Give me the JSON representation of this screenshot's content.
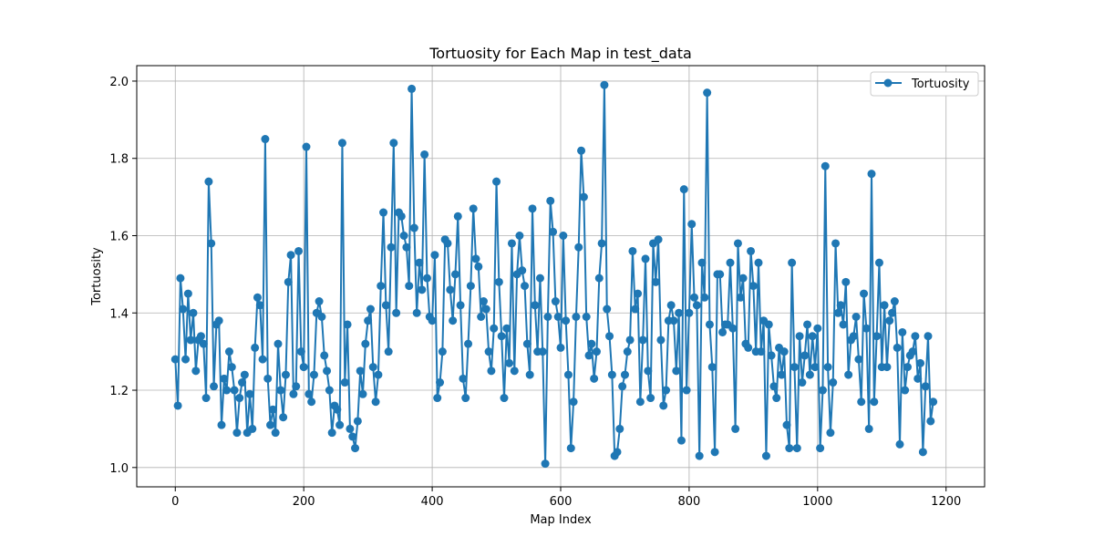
{
  "chart_data": {
    "type": "line",
    "title": "Tortuosity for Each Map in test_data",
    "xlabel": "Map Index",
    "ylabel": "Tortuosity",
    "xlim": [
      -60,
      1260
    ],
    "ylim": [
      0.95,
      2.04
    ],
    "xticks": [
      0,
      200,
      400,
      600,
      800,
      1000,
      1200
    ],
    "yticks": [
      1.0,
      1.2,
      1.4,
      1.6,
      1.8,
      2.0
    ],
    "xtick_labels": [
      "0",
      "200",
      "400",
      "600",
      "800",
      "1000",
      "1200"
    ],
    "ytick_labels": [
      "1.0",
      "1.2",
      "1.4",
      "1.6",
      "1.8",
      "2.0"
    ],
    "grid": true,
    "legend_position": "top-right",
    "series": [
      {
        "name": "Tortuosity",
        "color": "#1f77b4",
        "marker": "circle",
        "x_start": 0,
        "x_step": 4,
        "y": [
          1.28,
          1.16,
          1.49,
          1.41,
          1.28,
          1.45,
          1.33,
          1.4,
          1.25,
          1.33,
          1.34,
          1.32,
          1.18,
          1.74,
          1.58,
          1.21,
          1.37,
          1.38,
          1.11,
          1.23,
          1.2,
          1.3,
          1.26,
          1.2,
          1.09,
          1.18,
          1.22,
          1.24,
          1.09,
          1.19,
          1.1,
          1.31,
          1.44,
          1.42,
          1.28,
          1.85,
          1.23,
          1.11,
          1.15,
          1.09,
          1.32,
          1.2,
          1.13,
          1.24,
          1.48,
          1.55,
          1.19,
          1.21,
          1.56,
          1.3,
          1.26,
          1.83,
          1.19,
          1.17,
          1.24,
          1.4,
          1.43,
          1.39,
          1.29,
          1.25,
          1.2,
          1.09,
          1.16,
          1.15,
          1.11,
          1.84,
          1.22,
          1.37,
          1.1,
          1.08,
          1.05,
          1.12,
          1.25,
          1.19,
          1.32,
          1.38,
          1.41,
          1.26,
          1.17,
          1.24,
          1.47,
          1.66,
          1.42,
          1.3,
          1.57,
          1.84,
          1.4,
          1.66,
          1.65,
          1.6,
          1.57,
          1.47,
          1.98,
          1.62,
          1.4,
          1.53,
          1.46,
          1.81,
          1.49,
          1.39,
          1.38,
          1.55,
          1.18,
          1.22,
          1.3,
          1.59,
          1.58,
          1.46,
          1.38,
          1.5,
          1.65,
          1.42,
          1.23,
          1.18,
          1.32,
          1.47,
          1.67,
          1.54,
          1.52,
          1.39,
          1.43,
          1.41,
          1.3,
          1.25,
          1.36,
          1.74,
          1.48,
          1.34,
          1.18,
          1.36,
          1.27,
          1.58,
          1.25,
          1.5,
          1.6,
          1.51,
          1.47,
          1.32,
          1.24,
          1.67,
          1.42,
          1.3,
          1.49,
          1.3,
          1.01,
          1.39,
          1.69,
          1.61,
          1.43,
          1.39,
          1.31,
          1.6,
          1.38,
          1.24,
          1.05,
          1.17,
          1.39,
          1.57,
          1.82,
          1.7,
          1.39,
          1.29,
          1.32,
          1.23,
          1.3,
          1.49,
          1.58,
          1.99,
          1.41,
          1.34,
          1.24,
          1.03,
          1.04,
          1.1,
          1.21,
          1.24,
          1.3,
          1.33,
          1.56,
          1.41,
          1.45,
          1.17,
          1.33,
          1.54,
          1.25,
          1.18,
          1.58,
          1.48,
          1.59,
          1.33,
          1.16,
          1.2,
          1.38,
          1.42,
          1.38,
          1.25,
          1.4,
          1.07,
          1.72,
          1.2,
          1.4,
          1.63,
          1.44,
          1.42,
          1.03,
          1.53,
          1.44,
          1.97,
          1.37,
          1.26,
          1.04,
          1.5,
          1.5,
          1.35,
          1.37,
          1.37,
          1.53,
          1.36,
          1.1,
          1.58,
          1.44,
          1.49,
          1.32,
          1.31,
          1.56,
          1.47,
          1.3,
          1.53,
          1.3,
          1.38,
          1.03,
          1.37,
          1.29,
          1.21,
          1.18,
          1.31,
          1.24,
          1.3,
          1.11,
          1.05,
          1.53,
          1.26,
          1.05,
          1.34,
          1.22,
          1.29,
          1.37,
          1.24,
          1.34,
          1.26,
          1.36,
          1.05,
          1.2,
          1.78,
          1.26,
          1.09,
          1.22,
          1.58,
          1.4,
          1.42,
          1.37,
          1.48,
          1.24,
          1.33,
          1.34,
          1.39,
          1.28,
          1.17,
          1.45,
          1.36,
          1.1,
          1.76,
          1.17,
          1.34,
          1.53,
          1.26,
          1.42,
          1.26,
          1.38,
          1.4,
          1.43,
          1.31,
          1.06,
          1.35,
          1.2,
          1.26,
          1.29,
          1.3,
          1.34,
          1.23,
          1.27,
          1.04,
          1.21,
          1.34,
          1.12,
          1.17
        ]
      }
    ]
  }
}
